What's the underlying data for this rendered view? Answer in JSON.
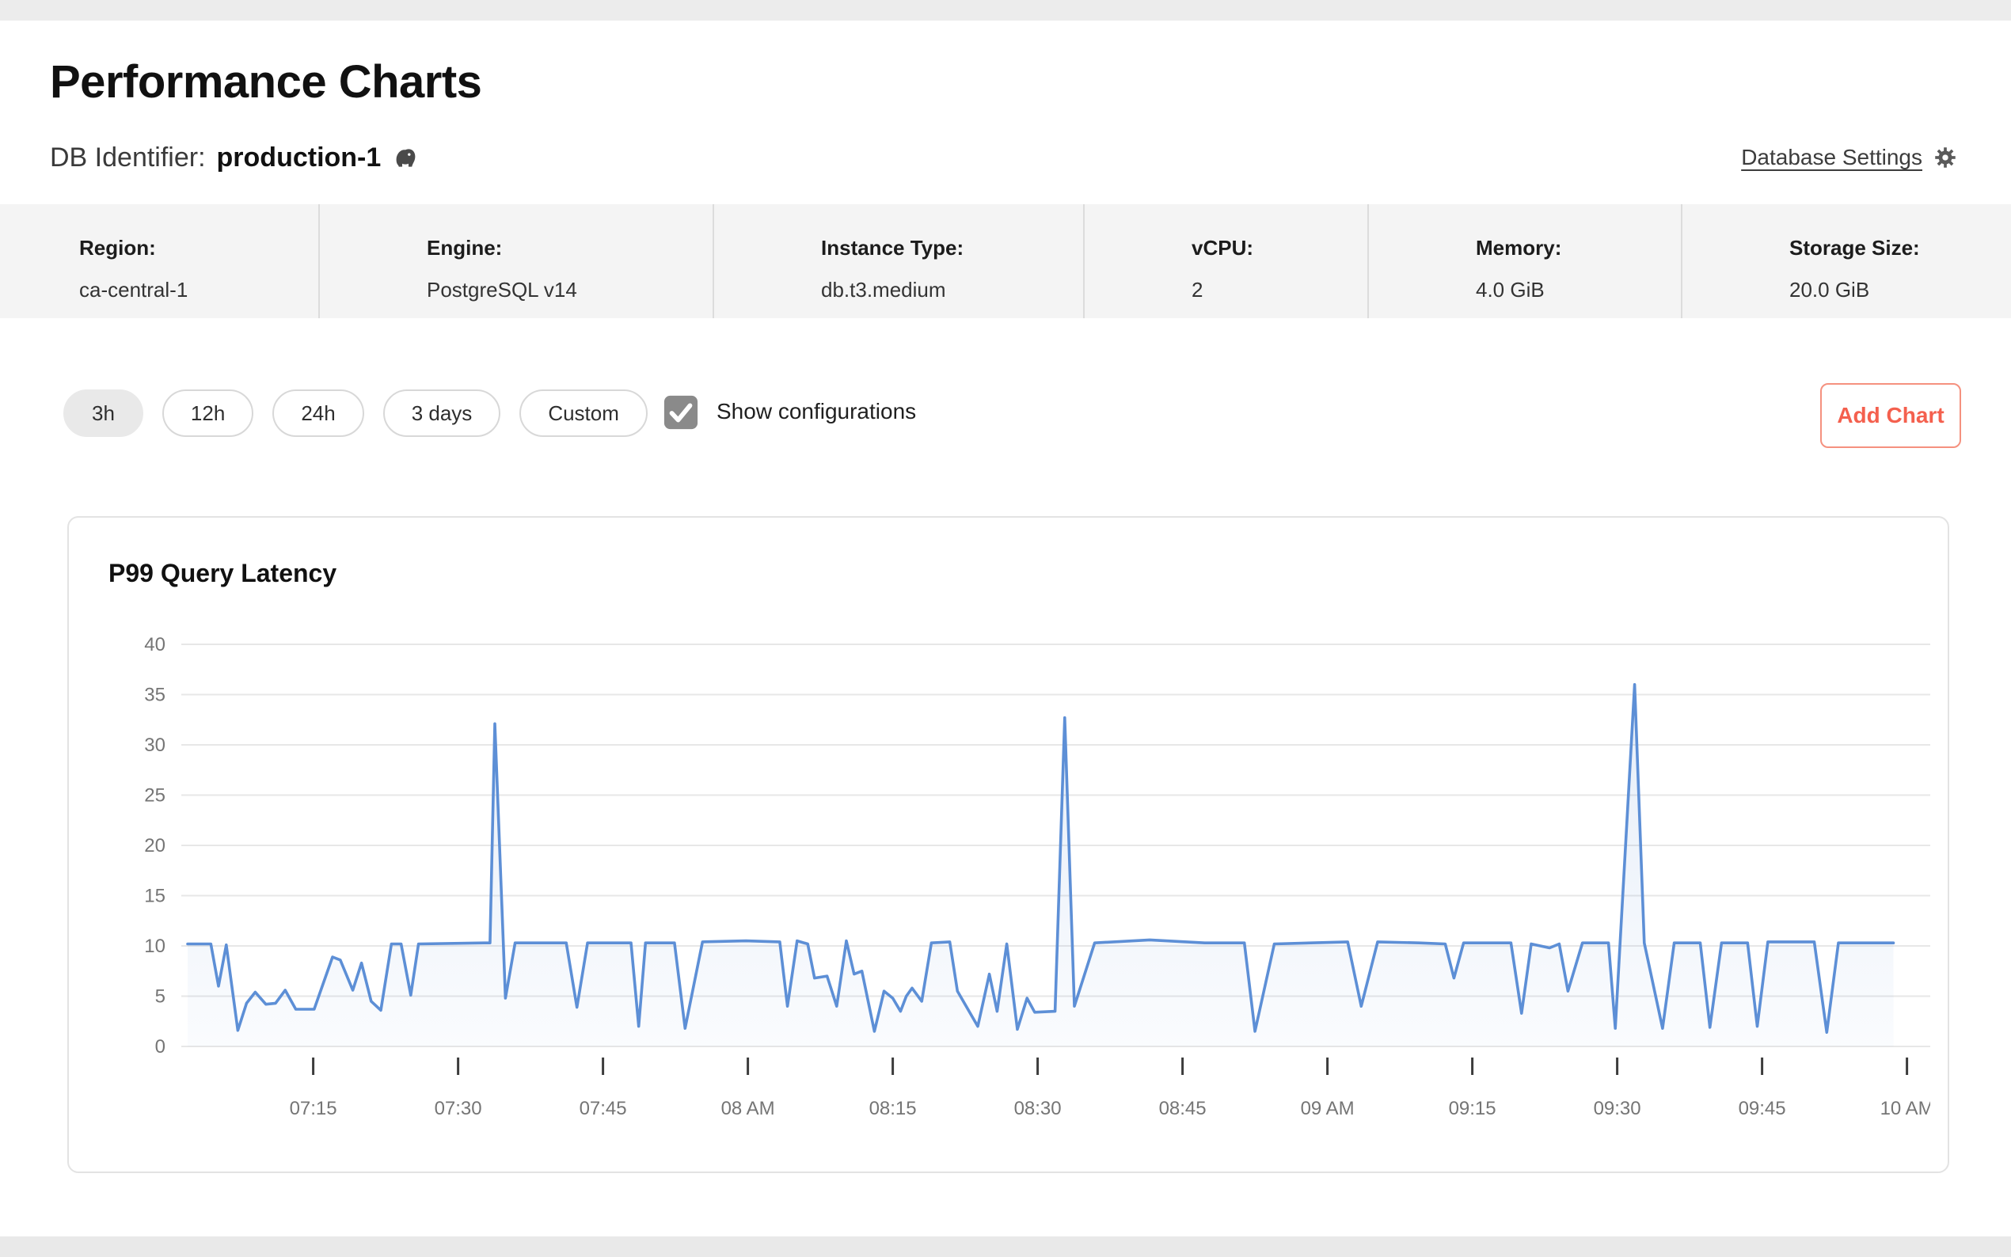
{
  "header": {
    "title": "Performance Charts",
    "db_label": "DB Identifier:",
    "db_name": "production-1",
    "db_engine_icon": "postgresql-elephant-icon",
    "settings_link": "Database Settings"
  },
  "info_bar": {
    "items": [
      {
        "label": "Region:",
        "value": "ca-central-1"
      },
      {
        "label": "Engine:",
        "value": "PostgreSQL v14"
      },
      {
        "label": "Instance Type:",
        "value": "db.t3.medium"
      },
      {
        "label": "vCPU:",
        "value": "2"
      },
      {
        "label": "Memory:",
        "value": "4.0 GiB"
      },
      {
        "label": "Storage Size:",
        "value": "20.0 GiB"
      }
    ]
  },
  "toolbar": {
    "ranges": [
      "3h",
      "12h",
      "24h",
      "3 days",
      "Custom"
    ],
    "active_range": "3h",
    "checkbox_label": "Show configurations",
    "checkbox_checked": true,
    "add_chart_label": "Add Chart"
  },
  "chart_data": {
    "type": "line",
    "title": "P99 Query Latency",
    "xlabel": "",
    "ylabel": "",
    "ylim": [
      0,
      40
    ],
    "y_ticks": [
      0,
      5,
      10,
      15,
      20,
      25,
      30,
      35,
      40
    ],
    "grid": true,
    "legend": "none",
    "x_ticks": [
      {
        "m": 13,
        "label": "07:15"
      },
      {
        "m": 28,
        "label": "07:30"
      },
      {
        "m": 43,
        "label": "07:45"
      },
      {
        "m": 58,
        "label": "08 AM"
      },
      {
        "m": 73,
        "label": "08:15"
      },
      {
        "m": 88,
        "label": "08:30"
      },
      {
        "m": 103,
        "label": "08:45"
      },
      {
        "m": 118,
        "label": "09 AM"
      },
      {
        "m": 133,
        "label": "09:15"
      },
      {
        "m": 148,
        "label": "09:30"
      },
      {
        "m": 163,
        "label": "09:45"
      },
      {
        "m": 178,
        "label": "10 AM"
      }
    ],
    "points_unit": "[minutes_after_start, latency]",
    "points": [
      [
        0,
        10.2
      ],
      [
        2.4,
        10.2
      ],
      [
        3.2,
        6.0
      ],
      [
        4.0,
        10.1
      ],
      [
        5.2,
        1.6
      ],
      [
        6.1,
        4.3
      ],
      [
        7.0,
        5.4
      ],
      [
        8.1,
        4.2
      ],
      [
        9.1,
        4.3
      ],
      [
        10.1,
        5.6
      ],
      [
        11.2,
        3.7
      ],
      [
        13.1,
        3.7
      ],
      [
        15.0,
        8.9
      ],
      [
        15.8,
        8.6
      ],
      [
        17.1,
        5.6
      ],
      [
        18.0,
        8.3
      ],
      [
        19.0,
        4.5
      ],
      [
        20.0,
        3.6
      ],
      [
        21.1,
        10.2
      ],
      [
        22.1,
        10.2
      ],
      [
        23.1,
        5.1
      ],
      [
        23.9,
        10.2
      ],
      [
        30.7,
        10.3
      ],
      [
        31.3,
        10.3
      ],
      [
        31.8,
        32.1
      ],
      [
        32.9,
        4.8
      ],
      [
        33.9,
        10.3
      ],
      [
        39.2,
        10.3
      ],
      [
        40.3,
        3.9
      ],
      [
        41.4,
        10.3
      ],
      [
        45.9,
        10.3
      ],
      [
        46.7,
        2.0
      ],
      [
        47.4,
        10.3
      ],
      [
        50.4,
        10.3
      ],
      [
        51.5,
        1.8
      ],
      [
        53.3,
        10.4
      ],
      [
        57.8,
        10.5
      ],
      [
        61.3,
        10.4
      ],
      [
        62.1,
        4.0
      ],
      [
        63.1,
        10.5
      ],
      [
        64.2,
        10.2
      ],
      [
        64.9,
        6.8
      ],
      [
        66.2,
        7.0
      ],
      [
        67.2,
        4.0
      ],
      [
        68.2,
        10.5
      ],
      [
        69.0,
        7.2
      ],
      [
        69.8,
        7.5
      ],
      [
        71.1,
        1.5
      ],
      [
        72.1,
        5.5
      ],
      [
        73.0,
        4.8
      ],
      [
        73.8,
        3.5
      ],
      [
        74.4,
        5.0
      ],
      [
        75.0,
        5.8
      ],
      [
        76.0,
        4.5
      ],
      [
        77.0,
        10.3
      ],
      [
        78.9,
        10.4
      ],
      [
        79.7,
        5.5
      ],
      [
        81.8,
        2.0
      ],
      [
        83.0,
        7.2
      ],
      [
        83.8,
        3.5
      ],
      [
        84.8,
        10.2
      ],
      [
        85.9,
        1.7
      ],
      [
        86.9,
        4.8
      ],
      [
        87.7,
        3.4
      ],
      [
        89.8,
        3.5
      ],
      [
        90.8,
        32.7
      ],
      [
        91.8,
        4.0
      ],
      [
        93.9,
        10.3
      ],
      [
        99.6,
        10.6
      ],
      [
        105.3,
        10.3
      ],
      [
        109.4,
        10.3
      ],
      [
        110.5,
        1.5
      ],
      [
        112.5,
        10.2
      ],
      [
        120.1,
        10.4
      ],
      [
        121.5,
        4.0
      ],
      [
        123.2,
        10.4
      ],
      [
        127.5,
        10.3
      ],
      [
        130.2,
        10.2
      ],
      [
        131.1,
        6.8
      ],
      [
        132.1,
        10.3
      ],
      [
        137.0,
        10.3
      ],
      [
        138.1,
        3.3
      ],
      [
        139.1,
        10.2
      ],
      [
        141.0,
        9.8
      ],
      [
        142.0,
        10.2
      ],
      [
        142.9,
        5.5
      ],
      [
        144.4,
        10.3
      ],
      [
        147.1,
        10.3
      ],
      [
        147.8,
        1.8
      ],
      [
        149.8,
        36.0
      ],
      [
        150.8,
        10.3
      ],
      [
        152.7,
        1.8
      ],
      [
        153.9,
        10.3
      ],
      [
        156.6,
        10.3
      ],
      [
        157.6,
        1.9
      ],
      [
        158.8,
        10.3
      ],
      [
        161.5,
        10.3
      ],
      [
        162.5,
        2.0
      ],
      [
        163.6,
        10.4
      ],
      [
        168.4,
        10.4
      ],
      [
        169.7,
        1.4
      ],
      [
        170.9,
        10.3
      ],
      [
        176.6,
        10.3
      ]
    ]
  },
  "colors": {
    "accent_red": "#f4604e",
    "line_blue": "#5d8fd6",
    "area_blue": "#5d8fd6",
    "grid_gray": "#e7e7e7",
    "axis_text": "#757575",
    "tick_mark": "#3c3c3c",
    "checkbox_gray": "#8a8a8a",
    "icon_gray": "#4a4a4a"
  }
}
